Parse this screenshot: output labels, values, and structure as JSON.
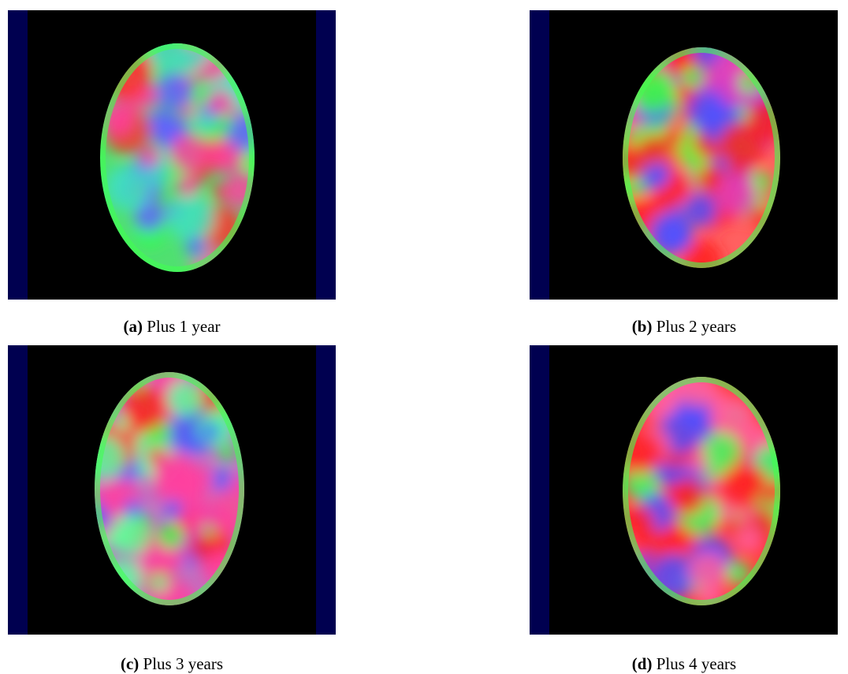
{
  "figure": {
    "panels": [
      {
        "label": "(a)",
        "caption": "Plus 1 year"
      },
      {
        "label": "(b)",
        "caption": "Plus 2 years"
      },
      {
        "label": "(c)",
        "caption": "Plus 3 years"
      },
      {
        "label": "(d)",
        "caption": "Plus 4 years"
      }
    ]
  }
}
